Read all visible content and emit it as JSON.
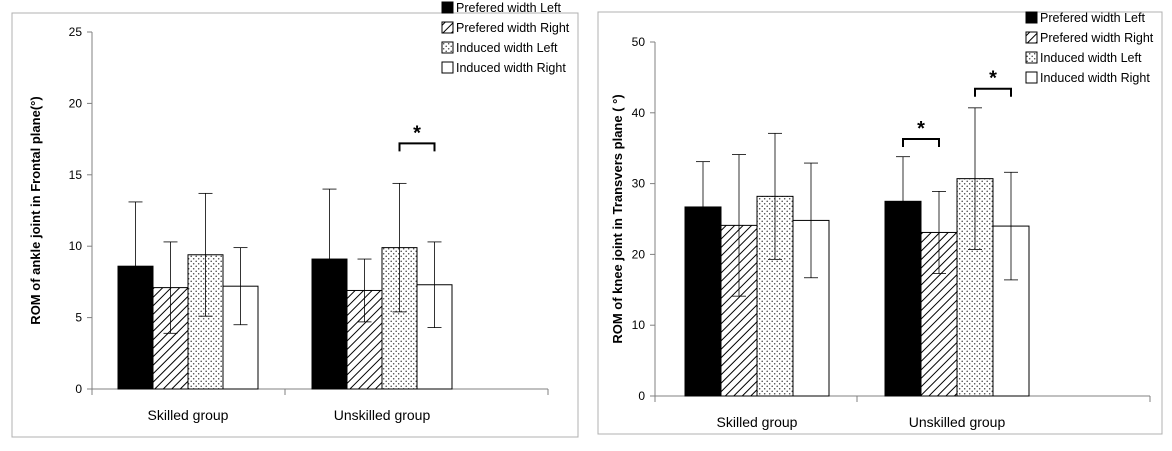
{
  "chart_data": [
    {
      "type": "bar",
      "title": "",
      "ylabel": "ROM of ankle joint in Frontal plane(°)",
      "xlabel": "",
      "ylim": [
        0,
        25
      ],
      "yticks": [
        0,
        5,
        10,
        15,
        20,
        25
      ],
      "grid": false,
      "legend_position": "top-right",
      "categories": [
        "Skilled group",
        "Unskilled group"
      ],
      "series": [
        {
          "name": "Prefered width Left",
          "fill": "solid-black",
          "values": [
            8.6,
            9.1
          ],
          "error": [
            4.5,
            4.9
          ]
        },
        {
          "name": "Prefered width Right",
          "fill": "diagonal-hatch",
          "values": [
            7.1,
            6.9
          ],
          "error": [
            3.2,
            2.2
          ]
        },
        {
          "name": "Induced width Left",
          "fill": "dotted",
          "values": [
            9.4,
            9.9
          ],
          "error": [
            4.3,
            4.5
          ]
        },
        {
          "name": "Induced width Right",
          "fill": "white",
          "values": [
            7.2,
            7.3
          ],
          "error": [
            2.7,
            3.0
          ]
        }
      ],
      "annotations": [
        {
          "text": "*",
          "category": 1,
          "from_series": 2,
          "to_series": 3,
          "y": 17.2
        }
      ]
    },
    {
      "type": "bar",
      "title": "",
      "ylabel": "ROM of knee joint in Transvers plane ( °)",
      "xlabel": "",
      "ylim": [
        0,
        50
      ],
      "yticks": [
        0,
        10,
        20,
        30,
        40,
        50
      ],
      "grid": false,
      "legend_position": "top-right",
      "categories": [
        "Skilled group",
        "Unskilled group"
      ],
      "series": [
        {
          "name": "Prefered width Left",
          "fill": "solid-black",
          "values": [
            26.7,
            27.5
          ],
          "error": [
            6.4,
            6.3
          ]
        },
        {
          "name": "Prefered width Right",
          "fill": "diagonal-hatch",
          "values": [
            24.1,
            23.1
          ],
          "error": [
            10.0,
            5.8
          ]
        },
        {
          "name": "Induced width Left",
          "fill": "dotted",
          "values": [
            28.2,
            30.7
          ],
          "error": [
            8.9,
            10.0
          ]
        },
        {
          "name": "Induced width Right",
          "fill": "white",
          "values": [
            24.8,
            24.0
          ],
          "error": [
            8.1,
            7.6
          ]
        }
      ],
      "annotations": [
        {
          "text": "*",
          "category": 1,
          "from_series": 0,
          "to_series": 1,
          "y": 36.3
        },
        {
          "text": "*",
          "category": 1,
          "from_series": 2,
          "to_series": 3,
          "y": 43.4
        }
      ]
    }
  ]
}
